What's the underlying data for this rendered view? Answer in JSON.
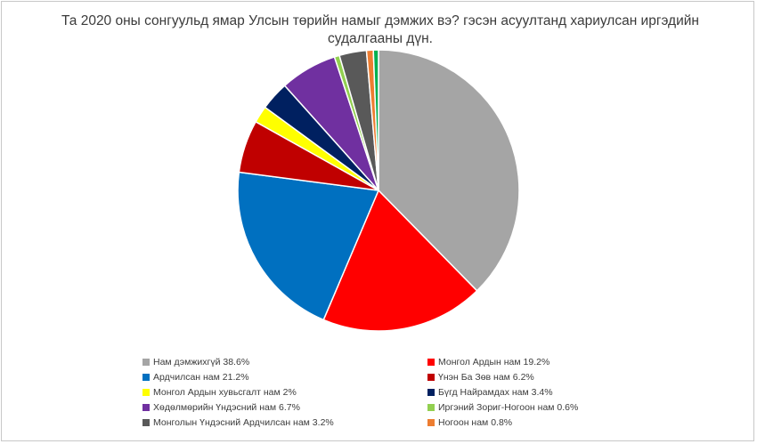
{
  "chart_data": {
    "type": "pie",
    "title": "Та 2020 оны сонгуульд ямар Улсын төрийн намыг дэмжих вэ? гэсэн асуултанд хариулсан иргэдийн судалгааны дүн.",
    "legend_position": "bottom",
    "slices": [
      {
        "label": "Нам дэмжихгүй 38.6%",
        "value": 38.6,
        "color": "#a5a5a5"
      },
      {
        "label": "Монгол Ардын нам 19.2%",
        "value": 19.2,
        "color": "#ff0000"
      },
      {
        "label": "Ардчилсан нам 21.2%",
        "value": 21.2,
        "color": "#0070c0"
      },
      {
        "label": "Үнэн Ба Зөв нам 6.2%",
        "value": 6.2,
        "color": "#c00000"
      },
      {
        "label": "Монгол Ардын хувьсгалт нам 2%",
        "value": 2,
        "color": "#ffff00"
      },
      {
        "label": "Бүгд Найрамдах нам 3.4%",
        "value": 3.4,
        "color": "#002060"
      },
      {
        "label": "Хөдөлмөрийн Үндэсний нам 6.7%",
        "value": 6.7,
        "color": "#7030a0"
      },
      {
        "label": "Иргэний Зориг-Ногоон нам 0.6%",
        "value": 0.6,
        "color": "#92d050"
      },
      {
        "label": "Монголын Үндэсний Ардчилсан нам 3.2%",
        "value": 3.2,
        "color": "#595959"
      },
      {
        "label": "Ногоон нам 0.8%",
        "value": 0.8,
        "color": "#ed7d31"
      },
      {
        "value": 0.6,
        "color": "#00b050"
      }
    ]
  }
}
